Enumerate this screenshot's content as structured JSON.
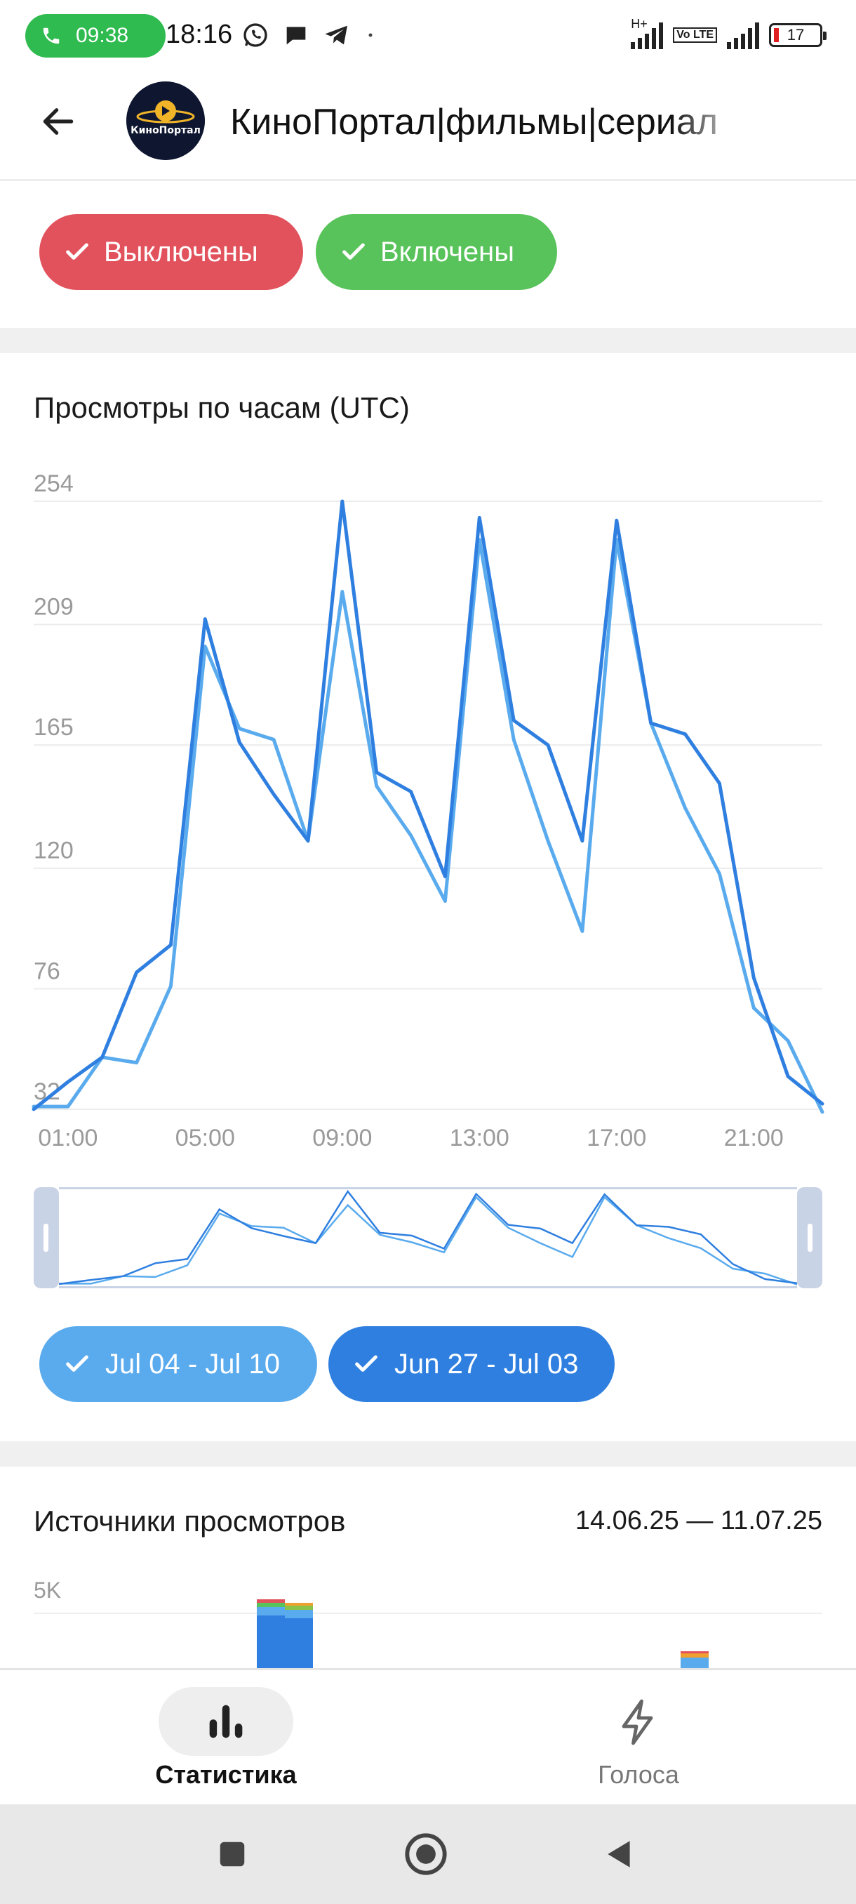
{
  "status_bar": {
    "call_time": "09:38",
    "clock": "18:16",
    "network_label": "H+",
    "volte_label": "Vo LTE",
    "battery_level": "17",
    "apps": [
      "whatsapp-icon",
      "message-icon",
      "telegram-icon"
    ]
  },
  "header": {
    "channel_title": "КиноПортал|фильмы|сериал",
    "avatar_text": "КиноПортал"
  },
  "filters": {
    "off_label": "Выключены",
    "on_label": "Включены",
    "off_color": "#e2525c",
    "on_color": "#58c35a"
  },
  "hourly_chart": {
    "title": "Просмотры по часам (UTC)",
    "legend": [
      {
        "label": "Jul 04 - Jul 10",
        "color": "#5aabee"
      },
      {
        "label": "Jun 27 - Jul 03",
        "color": "#2f7fe0"
      }
    ]
  },
  "chart_data": {
    "type": "line",
    "title": "Просмотры по часам (UTC)",
    "x": [
      0,
      1,
      2,
      3,
      4,
      5,
      6,
      7,
      8,
      9,
      10,
      11,
      12,
      13,
      14,
      15,
      16,
      17,
      18,
      19,
      20,
      21,
      22,
      23
    ],
    "x_tick_labels": [
      "01:00",
      "05:00",
      "09:00",
      "13:00",
      "17:00",
      "21:00"
    ],
    "x_tick_positions": [
      1,
      5,
      9,
      13,
      17,
      21
    ],
    "y_ticks": [
      32,
      76,
      120,
      165,
      209,
      254
    ],
    "ylim": [
      32,
      254
    ],
    "grid": true,
    "series": [
      {
        "name": "Jul 04 - Jul 10",
        "color": "#5aabee",
        "values": [
          33,
          33,
          51,
          49,
          77,
          201,
          171,
          167,
          130,
          221,
          150,
          132,
          108,
          240,
          167,
          130,
          97,
          240,
          173,
          142,
          118,
          69,
          57,
          31
        ]
      },
      {
        "name": "Jun 27 - Jul 03",
        "color": "#2f7fe0",
        "values": [
          32,
          42,
          51,
          82,
          92,
          211,
          166,
          147,
          130,
          254,
          155,
          148,
          117,
          248,
          174,
          165,
          130,
          247,
          173,
          169,
          151,
          80,
          44,
          34
        ]
      }
    ]
  },
  "sources": {
    "title": "Источники просмотров",
    "date_range": "14.06.25 — 11.07.25",
    "y_tick": "5K"
  },
  "bottom_nav": {
    "stats_label": "Статистика",
    "votes_label": "Голоса"
  }
}
